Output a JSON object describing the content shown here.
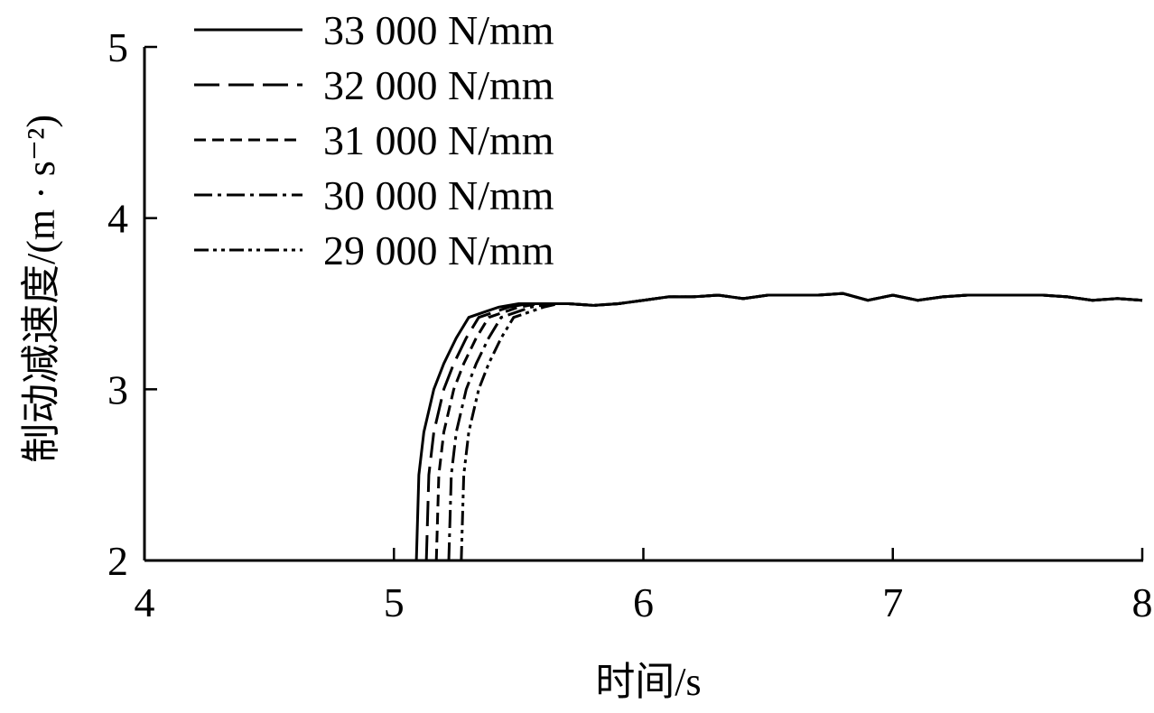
{
  "chart_data": {
    "type": "line",
    "x_label": "时间/s",
    "y_label": "制动减速度/(m · s⁻²)",
    "xlim": [
      4,
      8
    ],
    "xticks": [
      4,
      5,
      6,
      7,
      8
    ],
    "ylim": [
      2,
      5
    ],
    "yticks": [
      2,
      3,
      4,
      5
    ],
    "legend": "top-left",
    "series": [
      {
        "name": "33 000 N/mm",
        "color": "#000000",
        "dash": "solid",
        "x": [
          5.09,
          5.1,
          5.12,
          5.16,
          5.2,
          5.25,
          5.3,
          5.36,
          5.42,
          5.5,
          5.7,
          5.8,
          5.9,
          6.0,
          6.1,
          6.2,
          6.3,
          6.4,
          6.5,
          6.6,
          6.7,
          6.8,
          6.9,
          7.0,
          7.1,
          7.2,
          7.3,
          7.4,
          7.5,
          7.6,
          7.7,
          7.8,
          7.9,
          8.0
        ],
        "values": [
          2.0,
          2.5,
          2.75,
          3.0,
          3.15,
          3.3,
          3.42,
          3.45,
          3.48,
          3.5,
          3.5,
          3.49,
          3.5,
          3.52,
          3.54,
          3.54,
          3.55,
          3.53,
          3.55,
          3.55,
          3.55,
          3.56,
          3.52,
          3.55,
          3.52,
          3.54,
          3.55,
          3.55,
          3.55,
          3.55,
          3.54,
          3.52,
          3.53,
          3.52
        ]
      },
      {
        "name": "32 000 N/mm",
        "color": "#000000",
        "dash": "long-dash",
        "x": [
          5.13,
          5.14,
          5.16,
          5.2,
          5.24,
          5.29,
          5.34,
          5.4,
          5.46,
          5.54,
          5.7,
          5.8,
          5.9,
          6.0,
          6.1,
          6.2,
          6.3,
          6.4,
          6.5,
          6.6,
          6.7,
          6.8,
          6.9,
          7.0,
          7.1,
          7.2,
          7.3,
          7.4,
          7.5,
          7.6,
          7.7,
          7.8,
          7.9,
          8.0
        ],
        "values": [
          2.0,
          2.5,
          2.75,
          3.0,
          3.15,
          3.3,
          3.42,
          3.45,
          3.48,
          3.5,
          3.5,
          3.49,
          3.5,
          3.52,
          3.54,
          3.54,
          3.55,
          3.53,
          3.55,
          3.55,
          3.55,
          3.56,
          3.52,
          3.55,
          3.52,
          3.54,
          3.55,
          3.55,
          3.55,
          3.55,
          3.54,
          3.52,
          3.53,
          3.52
        ]
      },
      {
        "name": "31 000 N/mm",
        "color": "#000000",
        "dash": "dash",
        "x": [
          5.17,
          5.18,
          5.2,
          5.24,
          5.28,
          5.33,
          5.38,
          5.44,
          5.5,
          5.58,
          5.7,
          5.8,
          5.9,
          6.0,
          6.1,
          6.2,
          6.3,
          6.4,
          6.5,
          6.6,
          6.7,
          6.8,
          6.9,
          7.0,
          7.1,
          7.2,
          7.3,
          7.4,
          7.5,
          7.6,
          7.7,
          7.8,
          7.9,
          8.0
        ],
        "values": [
          2.0,
          2.5,
          2.75,
          3.0,
          3.15,
          3.3,
          3.42,
          3.45,
          3.48,
          3.5,
          3.5,
          3.49,
          3.5,
          3.52,
          3.54,
          3.54,
          3.55,
          3.53,
          3.55,
          3.55,
          3.55,
          3.56,
          3.52,
          3.55,
          3.52,
          3.54,
          3.55,
          3.55,
          3.55,
          3.55,
          3.54,
          3.52,
          3.53,
          3.52
        ]
      },
      {
        "name": "30 000 N/mm",
        "color": "#000000",
        "dash": "dash-dot",
        "x": [
          5.22,
          5.23,
          5.25,
          5.29,
          5.33,
          5.38,
          5.43,
          5.49,
          5.55,
          5.63,
          5.7,
          5.8,
          5.9,
          6.0,
          6.1,
          6.2,
          6.3,
          6.4,
          6.5,
          6.6,
          6.7,
          6.8,
          6.9,
          7.0,
          7.1,
          7.2,
          7.3,
          7.4,
          7.5,
          7.6,
          7.7,
          7.8,
          7.9,
          8.0
        ],
        "values": [
          2.0,
          2.5,
          2.75,
          3.0,
          3.15,
          3.3,
          3.42,
          3.45,
          3.48,
          3.5,
          3.5,
          3.49,
          3.5,
          3.52,
          3.54,
          3.54,
          3.55,
          3.53,
          3.55,
          3.55,
          3.55,
          3.56,
          3.52,
          3.55,
          3.52,
          3.54,
          3.55,
          3.55,
          3.55,
          3.55,
          3.54,
          3.52,
          3.53,
          3.52
        ]
      },
      {
        "name": "29 000 N/mm",
        "color": "#000000",
        "dash": "dash-dot-dot",
        "x": [
          5.27,
          5.28,
          5.3,
          5.34,
          5.38,
          5.43,
          5.48,
          5.54,
          5.6,
          5.66,
          5.7,
          5.8,
          5.9,
          6.0,
          6.1,
          6.2,
          6.3,
          6.4,
          6.5,
          6.6,
          6.7,
          6.8,
          6.9,
          7.0,
          7.1,
          7.2,
          7.3,
          7.4,
          7.5,
          7.6,
          7.7,
          7.8,
          7.9,
          8.0
        ],
        "values": [
          2.0,
          2.5,
          2.75,
          3.0,
          3.15,
          3.3,
          3.42,
          3.45,
          3.48,
          3.5,
          3.5,
          3.49,
          3.5,
          3.52,
          3.54,
          3.54,
          3.55,
          3.53,
          3.55,
          3.55,
          3.55,
          3.56,
          3.52,
          3.55,
          3.52,
          3.54,
          3.55,
          3.55,
          3.55,
          3.55,
          3.54,
          3.52,
          3.53,
          3.52
        ]
      }
    ]
  }
}
